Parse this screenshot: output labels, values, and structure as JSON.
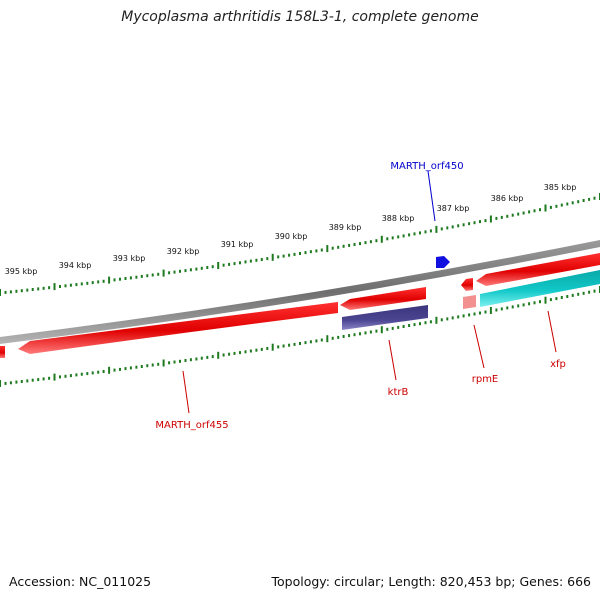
{
  "title": "Mycoplasma arthritidis 158L3-1, complete genome",
  "footer": {
    "accession": "Accession: NC_011025",
    "summary": "Topology: circular; Length: 820,453 bp; Genes: 666"
  },
  "colors": {
    "backbone": "#7a7a7a",
    "forward_gene": "#e00000",
    "reverse_gene_light": "#f08080",
    "ktrB": "#4a4590",
    "xfp": "#12c8c8",
    "marker": "#1010e0",
    "tick": "#1e7a1e",
    "label_red": "#cc0000",
    "label_blue": "#0000cc"
  },
  "scale": {
    "tick_labels": [
      "385 kbp",
      "386 kbp",
      "387 kbp",
      "388 kbp",
      "389 kbp",
      "390 kbp",
      "391 kbp",
      "392 kbp",
      "393 kbp",
      "394 kbp",
      "395 kbp"
    ]
  },
  "genes": [
    {
      "name": "MARTH_orf450",
      "color_key": "marker",
      "label_color": "label_blue"
    },
    {
      "name": "MARTH_orf455",
      "color_key": "forward_gene",
      "label_color": "label_red"
    },
    {
      "name": "ktrB",
      "color_key": "ktrB",
      "label_color": "label_red"
    },
    {
      "name": "rpmE",
      "color_key": "forward_gene",
      "label_color": "label_red"
    },
    {
      "name": "xfp",
      "color_key": "xfp",
      "label_color": "label_red"
    }
  ]
}
